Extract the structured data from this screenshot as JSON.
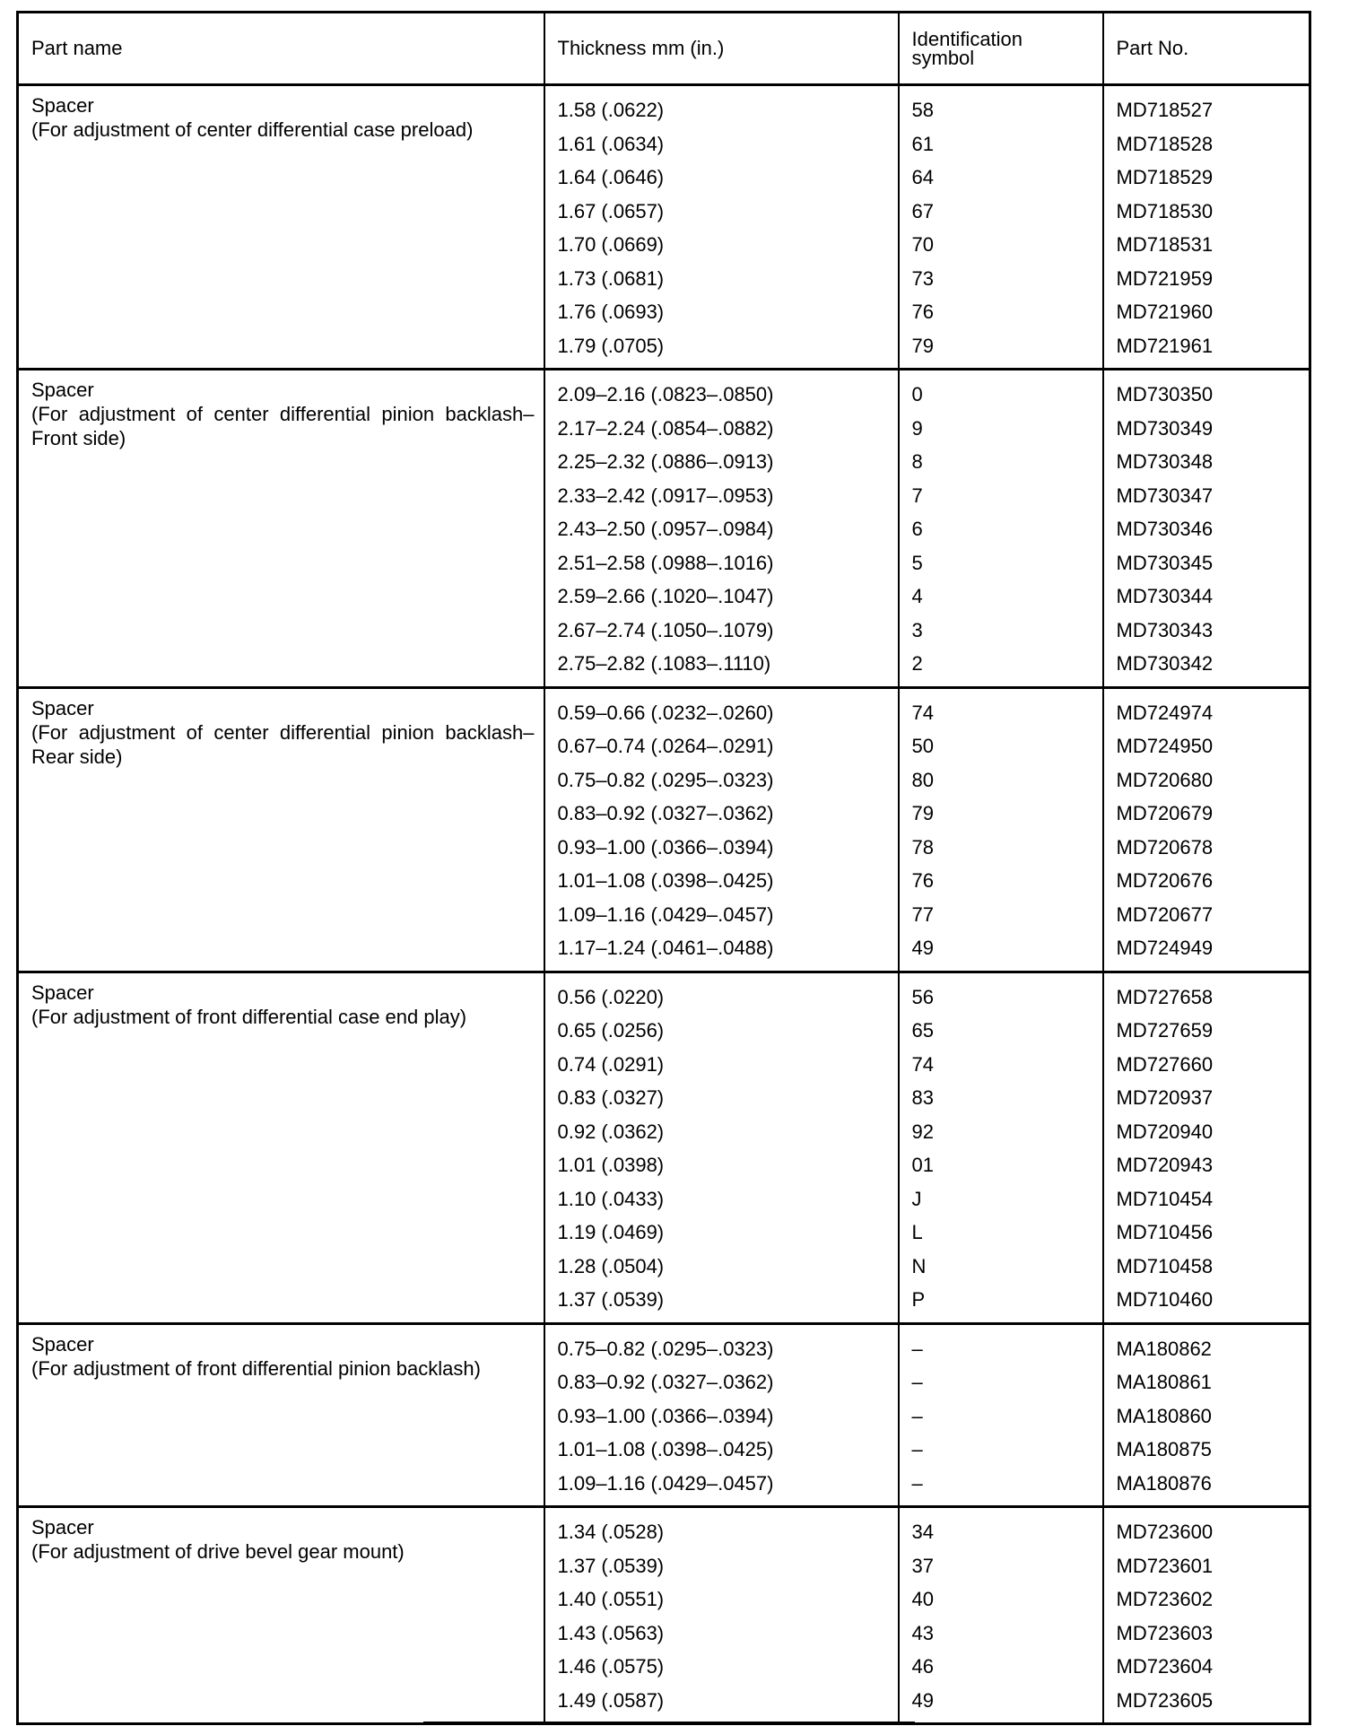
{
  "headers": {
    "part_name": "Part name",
    "thickness": "Thickness mm (in.)",
    "id_symbol_line1": "Identification",
    "id_symbol_line2": "symbol",
    "part_no": "Part No."
  },
  "groups": [
    {
      "name": "Spacer",
      "description": "(For adjustment of center differential case preload)",
      "rows": [
        [
          "1.58 (.0622)",
          "58",
          "MD718527"
        ],
        [
          "1.61 (.0634)",
          "61",
          "MD718528"
        ],
        [
          "1.64 (.0646)",
          "64",
          "MD718529"
        ],
        [
          "1.67 (.0657)",
          "67",
          "MD718530"
        ],
        [
          "1.70 (.0669)",
          "70",
          "MD718531"
        ],
        [
          "1.73 (.0681)",
          "73",
          "MD721959"
        ],
        [
          "1.76 (.0693)",
          "76",
          "MD721960"
        ],
        [
          "1.79 (.0705)",
          "79",
          "MD721961"
        ]
      ]
    },
    {
      "name": "Spacer",
      "description": "(For adjustment of center differential pinion backlash–Front side)",
      "rows": [
        [
          "2.09–2.16 (.0823–.0850)",
          "0",
          "MD730350"
        ],
        [
          "2.17–2.24 (.0854–.0882)",
          "9",
          "MD730349"
        ],
        [
          "2.25–2.32 (.0886–.0913)",
          "8",
          "MD730348"
        ],
        [
          "2.33–2.42 (.0917–.0953)",
          "7",
          "MD730347"
        ],
        [
          "2.43–2.50 (.0957–.0984)",
          "6",
          "MD730346"
        ],
        [
          "2.51–2.58 (.0988–.1016)",
          "5",
          "MD730345"
        ],
        [
          "2.59–2.66 (.1020–.1047)",
          "4",
          "MD730344"
        ],
        [
          "2.67–2.74 (.1050–.1079)",
          "3",
          "MD730343"
        ],
        [
          "2.75–2.82 (.1083–.1110)",
          "2",
          "MD730342"
        ]
      ]
    },
    {
      "name": "Spacer",
      "description": "(For adjustment of center differential pinion backlash–Rear side)",
      "rows": [
        [
          "0.59–0.66 (.0232–.0260)",
          "74",
          "MD724974"
        ],
        [
          "0.67–0.74 (.0264–.0291)",
          "50",
          "MD724950"
        ],
        [
          "0.75–0.82 (.0295–.0323)",
          "80",
          "MD720680"
        ],
        [
          "0.83–0.92 (.0327–.0362)",
          "79",
          "MD720679"
        ],
        [
          "0.93–1.00 (.0366–.0394)",
          "78",
          "MD720678"
        ],
        [
          "1.01–1.08 (.0398–.0425)",
          "76",
          "MD720676"
        ],
        [
          "1.09–1.16 (.0429–.0457)",
          "77",
          "MD720677"
        ],
        [
          "1.17–1.24 (.0461–.0488)",
          "49",
          "MD724949"
        ]
      ]
    },
    {
      "name": "Spacer",
      "description": "(For adjustment of front differential case end play)",
      "rows": [
        [
          "0.56 (.0220)",
          "56",
          "MD727658"
        ],
        [
          "0.65 (.0256)",
          "65",
          "MD727659"
        ],
        [
          "0.74 (.0291)",
          "74",
          "MD727660"
        ],
        [
          "0.83 (.0327)",
          "83",
          "MD720937"
        ],
        [
          "0.92 (.0362)",
          "92",
          "MD720940"
        ],
        [
          "1.01 (.0398)",
          "01",
          "MD720943"
        ],
        [
          "1.10 (.0433)",
          "J",
          "MD710454"
        ],
        [
          "1.19 (.0469)",
          "L",
          "MD710456"
        ],
        [
          "1.28 (.0504)",
          "N",
          "MD710458"
        ],
        [
          "1.37 (.0539)",
          "P",
          "MD710460"
        ]
      ]
    },
    {
      "name": "Spacer",
      "description": "(For adjustment of front differential pinion backlash)",
      "rows": [
        [
          "0.75–0.82 (.0295–.0323)",
          "–",
          "MA180862"
        ],
        [
          "0.83–0.92 (.0327–.0362)",
          "–",
          "MA180861"
        ],
        [
          "0.93–1.00 (.0366–.0394)",
          "–",
          "MA180860"
        ],
        [
          "1.01–1.08 (.0398–.0425)",
          "–",
          "MA180875"
        ],
        [
          "1.09–1.16 (.0429–.0457)",
          "–",
          "MA180876"
        ]
      ]
    },
    {
      "name": "Spacer",
      "description": "(For adjustment of drive bevel gear mount)",
      "rows": [
        [
          "1.34 (.0528)",
          "34",
          "MD723600"
        ],
        [
          "1.37 (.0539)",
          "37",
          "MD723601"
        ],
        [
          "1.40 (.0551)",
          "40",
          "MD723602"
        ],
        [
          "1.43 (.0563)",
          "43",
          "MD723603"
        ],
        [
          "1.46 (.0575)",
          "46",
          "MD723604"
        ],
        [
          "1.49 (.0587)",
          "49",
          "MD723605"
        ]
      ]
    }
  ]
}
